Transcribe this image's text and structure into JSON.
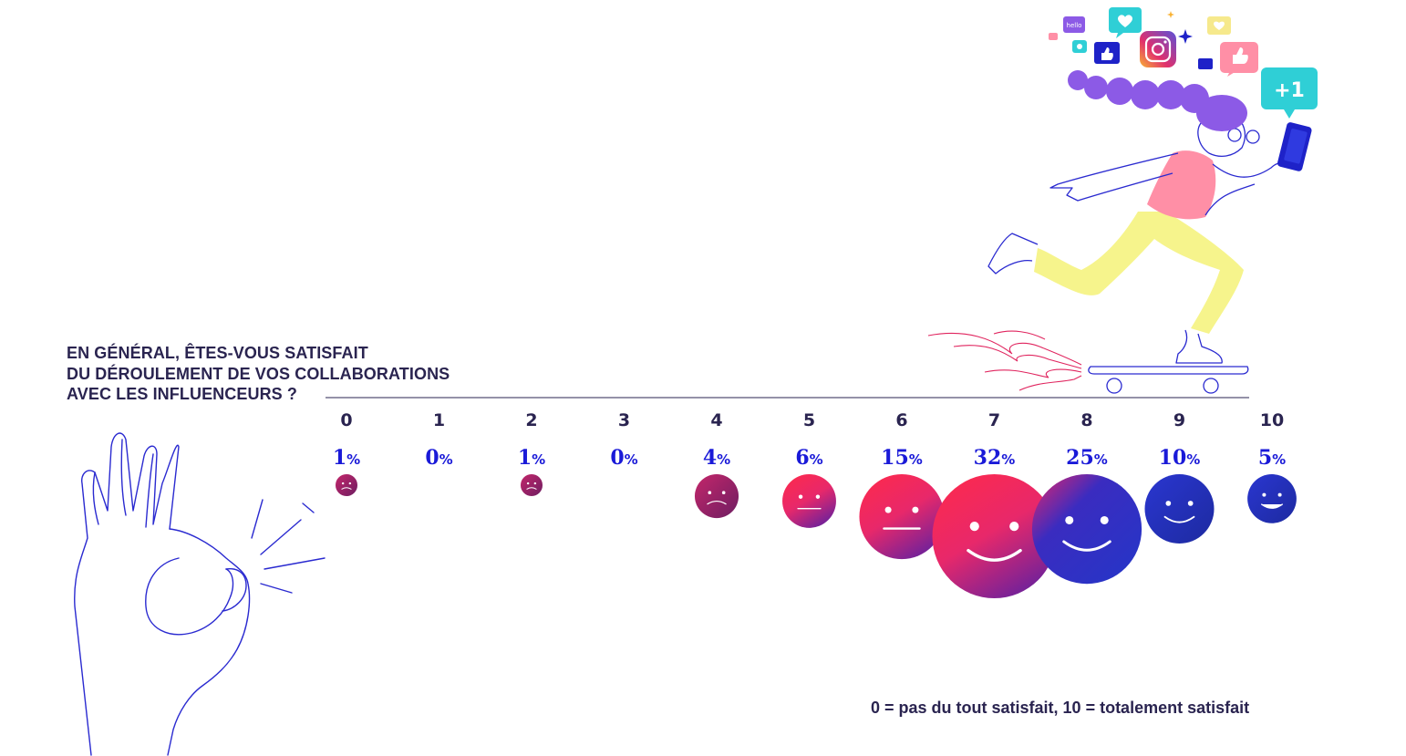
{
  "question": {
    "line1": "EN GÉNÉRAL, ÊTES-VOUS SATISFAIT",
    "line2": "DU DÉROULEMENT DE VOS COLLABORATIONS",
    "line3": "AVEC LES INFLUENCEURS ?"
  },
  "scale_note": "0 = pas du tout satisfait, 10 = totalement satisfait",
  "percent_symbol": "%",
  "colors": {
    "text_dark": "#2a2450",
    "percent_blue": "#1a1ad8",
    "face_pink": "#ff2a5c",
    "face_red": "#e0245e",
    "face_blue": "#2832c8",
    "face_purple": "#8a1f6e",
    "illustration_stroke": "#2a2ad0"
  },
  "illustration": {
    "plus_one": "+1",
    "hello": "hello"
  },
  "chart_data": {
    "type": "bubble",
    "categories": [
      "0",
      "1",
      "2",
      "3",
      "4",
      "5",
      "6",
      "7",
      "8",
      "9",
      "10"
    ],
    "values": [
      1,
      0,
      1,
      0,
      4,
      6,
      15,
      32,
      25,
      10,
      5
    ],
    "unit": "%",
    "faces": [
      "sad",
      "none",
      "sad",
      "none",
      "sad",
      "neutral",
      "neutral",
      "happy",
      "happy",
      "happy",
      "very-happy"
    ],
    "legend": "0 = pas du tout satisfait, 10 = totalement satisfait"
  }
}
